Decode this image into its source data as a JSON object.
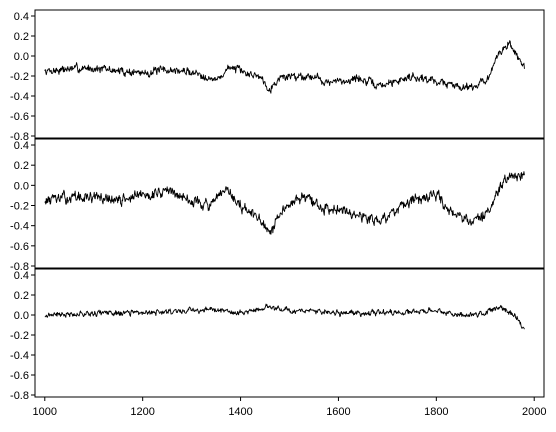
{
  "chart_data": [
    {
      "type": "line",
      "title": "",
      "xlabel": "",
      "ylabel": "",
      "xlim": [
        980,
        2020
      ],
      "ylim": [
        -0.8,
        0.42
      ],
      "yticks": [
        -0.8,
        -0.6,
        -0.4,
        -0.2,
        0.0,
        0.2,
        0.4
      ],
      "ytick_labels": [
        "-0.8",
        "-0.6",
        "-0.4",
        "-0.2",
        "0.0",
        "0.2",
        "0.4"
      ],
      "grid": false,
      "series": [
        {
          "color": "#000000",
          "anchors": [
            [
              1000,
              -0.15
            ],
            [
              1050,
              -0.13
            ],
            [
              1100,
              -0.12
            ],
            [
              1150,
              -0.15
            ],
            [
              1200,
              -0.17
            ],
            [
              1250,
              -0.14
            ],
            [
              1300,
              -0.16
            ],
            [
              1330,
              -0.2
            ],
            [
              1350,
              -0.25
            ],
            [
              1380,
              -0.1
            ],
            [
              1400,
              -0.16
            ],
            [
              1440,
              -0.2
            ],
            [
              1460,
              -0.33
            ],
            [
              1480,
              -0.22
            ],
            [
              1500,
              -0.2
            ],
            [
              1550,
              -0.2
            ],
            [
              1580,
              -0.27
            ],
            [
              1610,
              -0.25
            ],
            [
              1640,
              -0.22
            ],
            [
              1680,
              -0.3
            ],
            [
              1700,
              -0.28
            ],
            [
              1750,
              -0.2
            ],
            [
              1800,
              -0.25
            ],
            [
              1840,
              -0.3
            ],
            [
              1880,
              -0.3
            ],
            [
              1910,
              -0.2
            ],
            [
              1930,
              0.05
            ],
            [
              1950,
              0.12
            ],
            [
              1965,
              0.0
            ],
            [
              1980,
              -0.1
            ]
          ],
          "noise": 0.06,
          "seed": 7
        }
      ]
    },
    {
      "type": "line",
      "title": "",
      "xlabel": "",
      "ylabel": "",
      "xlim": [
        980,
        2020
      ],
      "ylim": [
        -0.8,
        0.42
      ],
      "yticks": [
        -0.8,
        -0.6,
        -0.4,
        -0.2,
        0.0,
        0.2,
        0.4
      ],
      "ytick_labels": [
        "-0.8",
        "-0.6",
        "-0.4",
        "-0.2",
        "0.0",
        "0.2",
        "0.4"
      ],
      "grid": false,
      "series": [
        {
          "color": "#000000",
          "anchors": [
            [
              1000,
              -0.15
            ],
            [
              1050,
              -0.12
            ],
            [
              1100,
              -0.12
            ],
            [
              1150,
              -0.15
            ],
            [
              1200,
              -0.1
            ],
            [
              1250,
              -0.05
            ],
            [
              1300,
              -0.15
            ],
            [
              1340,
              -0.2
            ],
            [
              1370,
              -0.05
            ],
            [
              1400,
              -0.2
            ],
            [
              1440,
              -0.35
            ],
            [
              1460,
              -0.5
            ],
            [
              1490,
              -0.2
            ],
            [
              1530,
              -0.1
            ],
            [
              1570,
              -0.25
            ],
            [
              1600,
              -0.2
            ],
            [
              1640,
              -0.3
            ],
            [
              1680,
              -0.35
            ],
            [
              1720,
              -0.25
            ],
            [
              1760,
              -0.15
            ],
            [
              1800,
              -0.1
            ],
            [
              1830,
              -0.25
            ],
            [
              1870,
              -0.35
            ],
            [
              1900,
              -0.3
            ],
            [
              1920,
              -0.15
            ],
            [
              1940,
              0.05
            ],
            [
              1960,
              0.1
            ],
            [
              1980,
              0.1
            ]
          ],
          "noise": 0.08,
          "seed": 13
        }
      ]
    },
    {
      "type": "line",
      "title": "",
      "xlabel": "",
      "ylabel": "",
      "xlim": [
        980,
        2020
      ],
      "ylim": [
        -0.8,
        0.42
      ],
      "xticks": [
        1000,
        1200,
        1400,
        1600,
        1800,
        2000
      ],
      "xtick_labels": [
        "1000",
        "1200",
        "1400",
        "1600",
        "1800",
        "2000"
      ],
      "yticks": [
        -0.8,
        -0.6,
        -0.4,
        -0.2,
        0.0,
        0.2,
        0.4
      ],
      "ytick_labels": [
        "-0.8",
        "-0.6",
        "-0.4",
        "-0.2",
        "0.0",
        "0.2",
        "0.4"
      ],
      "grid": false,
      "series": [
        {
          "color": "#000000",
          "anchors": [
            [
              1000,
              0.0
            ],
            [
              1100,
              0.02
            ],
            [
              1200,
              0.02
            ],
            [
              1300,
              0.05
            ],
            [
              1350,
              0.05
            ],
            [
              1400,
              0.02
            ],
            [
              1460,
              0.08
            ],
            [
              1500,
              0.05
            ],
            [
              1600,
              0.02
            ],
            [
              1700,
              0.02
            ],
            [
              1800,
              0.04
            ],
            [
              1850,
              0.0
            ],
            [
              1900,
              0.02
            ],
            [
              1930,
              0.08
            ],
            [
              1960,
              0.0
            ],
            [
              1980,
              -0.15
            ]
          ],
          "noise": 0.04,
          "seed": 21
        }
      ]
    }
  ]
}
